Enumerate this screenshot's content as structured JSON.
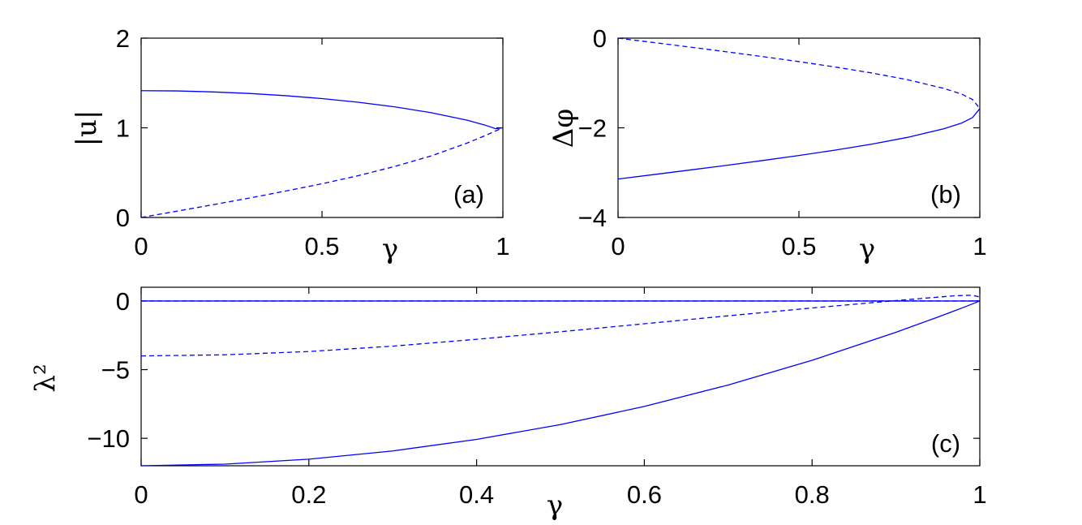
{
  "chart_data": [
    {
      "panel": "(a)",
      "type": "line",
      "xlabel": "γ",
      "ylabel": "|u|",
      "xlim": [
        0,
        1
      ],
      "ylim": [
        0,
        2
      ],
      "xticks": [
        "0",
        "0.5",
        "1"
      ],
      "yticks": [
        "0",
        "1",
        "2"
      ],
      "series": [
        {
          "style": "solid",
          "color": "#0000ff",
          "x": [
            0,
            0.1,
            0.2,
            0.3,
            0.4,
            0.5,
            0.6,
            0.7,
            0.8,
            0.9,
            0.95,
            0.98,
            1
          ],
          "y": [
            1.414,
            1.411,
            1.4,
            1.383,
            1.358,
            1.326,
            1.285,
            1.234,
            1.17,
            1.086,
            1.031,
            0.99,
            1.0
          ]
        },
        {
          "style": "dashed",
          "color": "#0000ff",
          "x": [
            0,
            0.1,
            0.2,
            0.3,
            0.4,
            0.5,
            0.6,
            0.7,
            0.8,
            0.9,
            0.95,
            0.98,
            1
          ],
          "y": [
            0,
            0.071,
            0.143,
            0.217,
            0.295,
            0.376,
            0.466,
            0.568,
            0.684,
            0.828,
            0.911,
            0.965,
            1.0
          ]
        }
      ]
    },
    {
      "panel": "(b)",
      "type": "line",
      "xlabel": "γ",
      "ylabel": "Δφ",
      "xlim": [
        0,
        1
      ],
      "ylim": [
        -4,
        0
      ],
      "xticks": [
        "0",
        "0.5",
        "1"
      ],
      "yticks": [
        "−4",
        "−2",
        "0"
      ],
      "series": [
        {
          "style": "solid",
          "color": "#0000ff",
          "x": [
            0,
            0.1,
            0.2,
            0.3,
            0.4,
            0.5,
            0.6,
            0.7,
            0.8,
            0.9,
            0.95,
            0.98,
            1
          ],
          "y": [
            -3.142,
            -3.042,
            -2.94,
            -2.837,
            -2.73,
            -2.618,
            -2.498,
            -2.366,
            -2.214,
            -2.022,
            -1.893,
            -1.772,
            -1.571
          ]
        },
        {
          "style": "dashed",
          "color": "#0000ff",
          "x": [
            0,
            0.1,
            0.2,
            0.3,
            0.4,
            0.5,
            0.6,
            0.7,
            0.8,
            0.9,
            0.95,
            0.98,
            1
          ],
          "y": [
            0,
            -0.1,
            -0.201,
            -0.305,
            -0.412,
            -0.524,
            -0.644,
            -0.775,
            -0.927,
            -1.12,
            -1.249,
            -1.37,
            -1.571
          ]
        }
      ]
    },
    {
      "panel": "(c)",
      "type": "line",
      "xlabel": "γ",
      "ylabel": "λ²",
      "xlim": [
        0,
        1
      ],
      "ylim": [
        -12,
        1
      ],
      "xticks": [
        "0",
        "0.2",
        "0.4",
        "0.6",
        "0.8",
        "1"
      ],
      "yticks": [
        "−10",
        "−5",
        "0"
      ],
      "series": [
        {
          "style": "solid",
          "color": "#0000ff",
          "x": [
            0,
            1
          ],
          "y": [
            0,
            0
          ]
        },
        {
          "style": "dashed",
          "color": "#0000ff",
          "x": [
            0,
            1
          ],
          "y": [
            0,
            0
          ]
        },
        {
          "style": "solid",
          "color": "#0000ff",
          "x": [
            0,
            0.1,
            0.2,
            0.3,
            0.4,
            0.5,
            0.6,
            0.7,
            0.8,
            0.9,
            0.95,
            0.98,
            1
          ],
          "y": [
            -12,
            -11.88,
            -11.52,
            -10.92,
            -10.08,
            -9.0,
            -7.68,
            -6.12,
            -4.32,
            -2.28,
            -1.17,
            -0.48,
            0
          ]
        },
        {
          "style": "dashed",
          "color": "#0000ff",
          "x": [
            0,
            0.1,
            0.2,
            0.3,
            0.4,
            0.5,
            0.6,
            0.7,
            0.8,
            0.9,
            0.95,
            0.97,
            0.99,
            1
          ],
          "y": [
            -4.0,
            -3.92,
            -3.68,
            -3.29,
            -2.79,
            -2.24,
            -1.66,
            -1.08,
            -0.51,
            0.03,
            0.28,
            0.38,
            0.42,
            0.3
          ]
        }
      ]
    }
  ]
}
